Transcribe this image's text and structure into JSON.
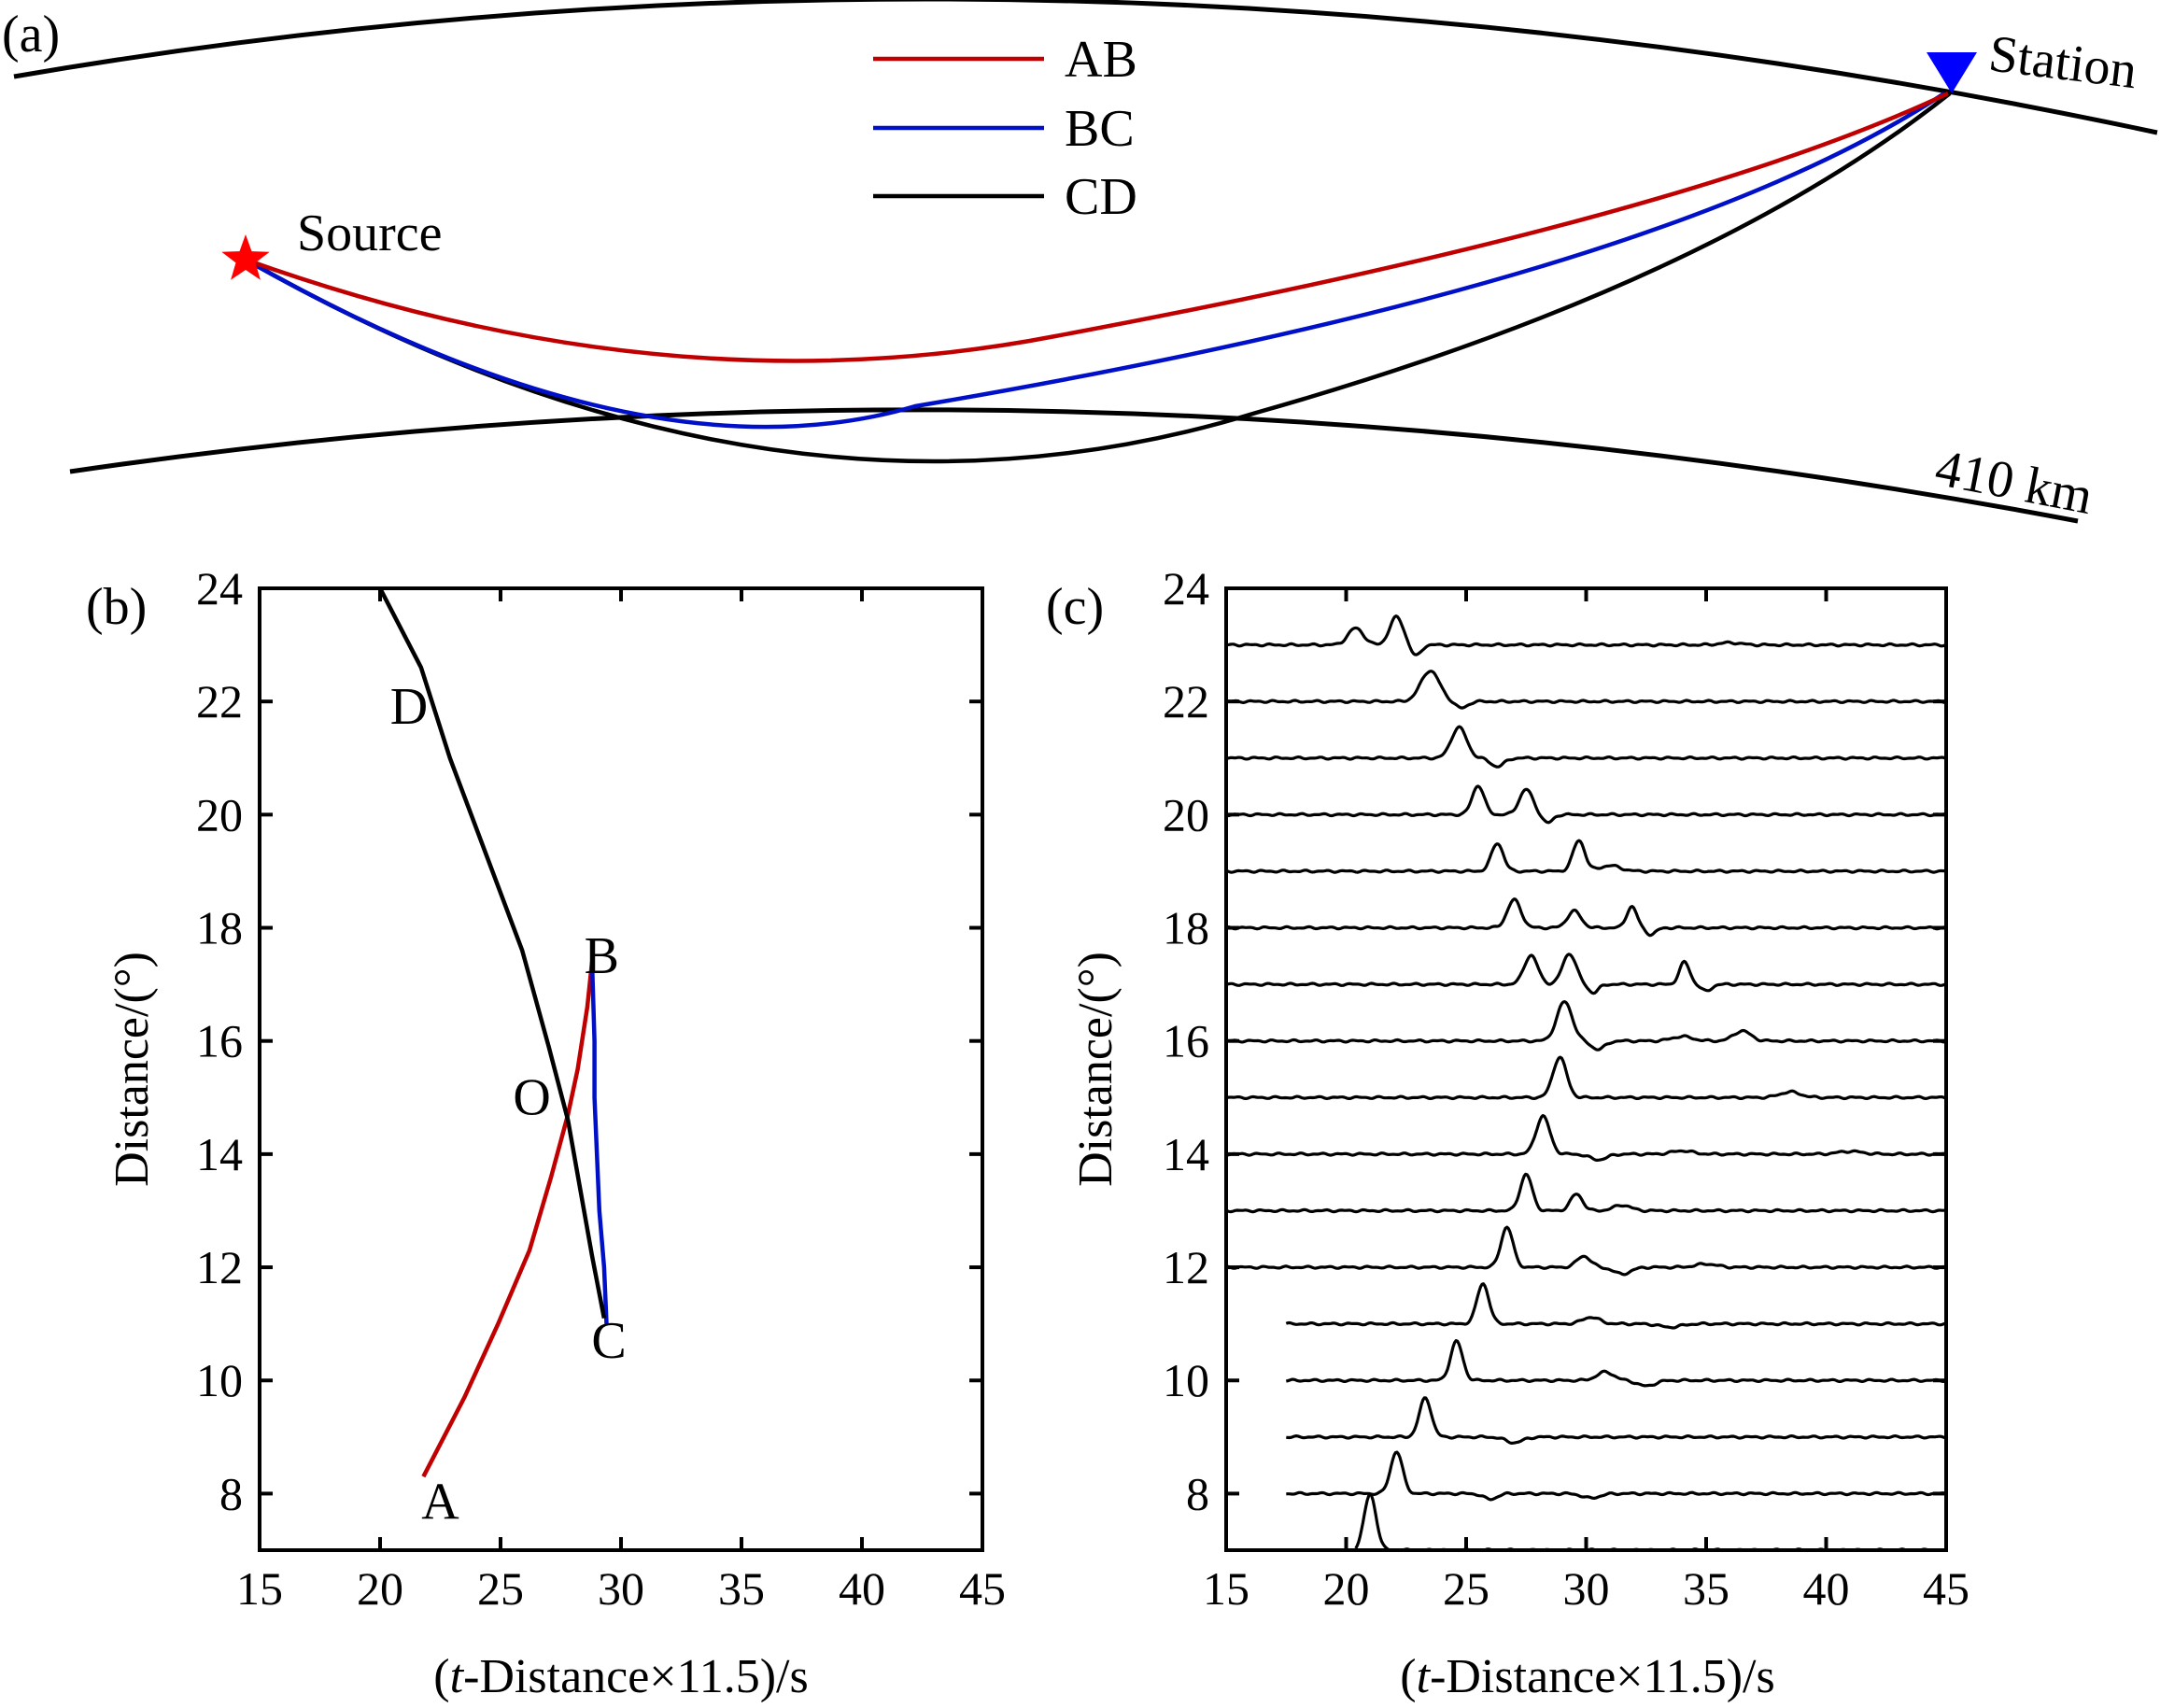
{
  "figure": {
    "panel_a_label": "(a)",
    "panel_b_label": "(b)",
    "panel_c_label": "(c)"
  },
  "colors": {
    "AB": "#c00000",
    "BC": "#0010c8",
    "CD": "#000000",
    "source_star": "#ff0000",
    "station_marker": "#0000ff"
  },
  "chart_data": [
    {
      "type": "schematic",
      "panel": "(a)",
      "title": "",
      "labels": {
        "source": "Source",
        "station": "Station",
        "discontinuity": "410 km"
      },
      "legend": {
        "placement": "top-center",
        "entries": [
          {
            "name": "AB",
            "color": "#c00000"
          },
          {
            "name": "BC",
            "color": "#0010c8"
          },
          {
            "name": "CD",
            "color": "#000000"
          }
        ]
      }
    },
    {
      "type": "line",
      "panel": "(b)",
      "xlabel_pre": "(",
      "xlabel_italic": "t",
      "xlabel_post": "-Distance×11.5)/s",
      "ylabel": "Distance/(°)",
      "xlim": [
        15,
        45
      ],
      "ylim": [
        7,
        24
      ],
      "xticks": [
        15,
        20,
        25,
        30,
        35,
        40,
        45
      ],
      "yticks": [
        8,
        10,
        12,
        14,
        16,
        18,
        20,
        22,
        24
      ],
      "series": [
        {
          "name": "AB",
          "color": "#c00000",
          "points": [
            [
              21.8,
              8.3
            ],
            [
              23.5,
              9.7
            ],
            [
              24.9,
              11.0
            ],
            [
              26.2,
              12.3
            ],
            [
              27.1,
              13.6
            ],
            [
              27.8,
              14.7
            ],
            [
              28.2,
              15.5
            ],
            [
              28.6,
              16.6
            ],
            [
              28.8,
              17.4
            ],
            [
              28.8,
              17.8
            ]
          ]
        },
        {
          "name": "BC",
          "color": "#0010c8",
          "points": [
            [
              28.8,
              17.4
            ],
            [
              28.9,
              16.0
            ],
            [
              28.9,
              15.0
            ],
            [
              29.0,
              14.0
            ],
            [
              29.1,
              13.0
            ],
            [
              29.3,
              12.0
            ],
            [
              29.4,
              11.0
            ]
          ]
        },
        {
          "name": "CD",
          "color": "#000000",
          "points": [
            [
              20.0,
              24.0
            ],
            [
              21.7,
              22.6
            ],
            [
              22.9,
              21.0
            ],
            [
              24.4,
              19.3
            ],
            [
              25.9,
              17.6
            ],
            [
              27.0,
              15.9
            ],
            [
              27.8,
              14.6
            ],
            [
              28.3,
              13.4
            ],
            [
              28.8,
              12.2
            ],
            [
              29.3,
              11.1
            ]
          ]
        }
      ],
      "point_labels": [
        {
          "text": "A",
          "x": 22.5,
          "y": 7.85
        },
        {
          "text": "B",
          "x": 29.2,
          "y": 17.5
        },
        {
          "text": "C",
          "x": 29.5,
          "y": 10.7
        },
        {
          "text": "D",
          "x": 21.2,
          "y": 21.9
        },
        {
          "text": "O",
          "x": 26.3,
          "y": 15.0
        }
      ]
    },
    {
      "type": "line",
      "panel": "(c)",
      "subtype": "waveform-record-section",
      "xlabel_pre": "(",
      "xlabel_italic": "t",
      "xlabel_post": "-Distance×11.5)/s",
      "ylabel": "Distance/(°)",
      "xlim": [
        15,
        45
      ],
      "ylim": [
        7,
        24
      ],
      "xticks": [
        15,
        20,
        25,
        30,
        35,
        40,
        45
      ],
      "yticks": [
        8,
        10,
        12,
        14,
        16,
        18,
        20,
        22,
        24
      ],
      "traces": [
        {
          "distance": 7,
          "start": 20.4,
          "peaks": [
            [
              21.0,
              1.0,
              0.35
            ]
          ]
        },
        {
          "distance": 8,
          "start": 17.5,
          "peaks": [
            [
              22.1,
              0.75,
              0.35
            ],
            [
              26.0,
              -0.1,
              0.4
            ],
            [
              30.2,
              -0.08,
              0.5
            ]
          ]
        },
        {
          "distance": 9,
          "start": 17.5,
          "peaks": [
            [
              23.3,
              0.7,
              0.35
            ],
            [
              27.0,
              -0.1,
              0.5
            ]
          ]
        },
        {
          "distance": 10,
          "start": 17.5,
          "peaks": [
            [
              24.6,
              0.7,
              0.35
            ],
            [
              30.8,
              0.15,
              0.5
            ],
            [
              32.5,
              -0.1,
              0.5
            ]
          ]
        },
        {
          "distance": 11,
          "start": 17.5,
          "peaks": [
            [
              25.7,
              0.72,
              0.35
            ],
            [
              30.2,
              0.12,
              0.5
            ],
            [
              33.5,
              -0.06,
              0.6
            ]
          ]
        },
        {
          "distance": 12,
          "start": 15.0,
          "peaks": [
            [
              26.7,
              0.72,
              0.35
            ],
            [
              29.9,
              0.2,
              0.4
            ],
            [
              31.5,
              -0.12,
              0.5
            ],
            [
              35.0,
              0.06,
              0.6
            ]
          ]
        },
        {
          "distance": 13,
          "start": 15.0,
          "peaks": [
            [
              27.5,
              0.65,
              0.35
            ],
            [
              29.6,
              0.3,
              0.35
            ],
            [
              31.5,
              0.1,
              0.5
            ]
          ]
        },
        {
          "distance": 14,
          "start": 15.0,
          "peaks": [
            [
              28.2,
              0.68,
              0.4
            ],
            [
              30.5,
              -0.1,
              0.5
            ],
            [
              34.0,
              0.06,
              0.6
            ],
            [
              41.0,
              0.05,
              0.7
            ]
          ]
        },
        {
          "distance": 15,
          "start": 15.0,
          "peaks": [
            [
              28.9,
              0.72,
              0.4
            ],
            [
              38.5,
              0.1,
              0.6
            ]
          ]
        },
        {
          "distance": 16,
          "start": 15.0,
          "peaks": [
            [
              29.1,
              0.7,
              0.45
            ],
            [
              30.5,
              -0.15,
              0.4
            ],
            [
              34.0,
              0.08,
              0.6
            ],
            [
              36.5,
              0.18,
              0.5
            ]
          ]
        },
        {
          "distance": 17,
          "start": 15.0,
          "peaks": [
            [
              27.7,
              0.52,
              0.4
            ],
            [
              29.3,
              0.55,
              0.4
            ],
            [
              30.3,
              -0.15,
              0.3
            ],
            [
              34.1,
              0.4,
              0.3
            ],
            [
              35.0,
              -0.12,
              0.3
            ]
          ]
        },
        {
          "distance": 18,
          "start": 15.0,
          "peaks": [
            [
              27.0,
              0.5,
              0.4
            ],
            [
              29.5,
              0.3,
              0.4
            ],
            [
              31.9,
              0.38,
              0.3
            ],
            [
              32.7,
              -0.12,
              0.3
            ]
          ]
        },
        {
          "distance": 19,
          "start": 15.0,
          "peaks": [
            [
              26.3,
              0.5,
              0.35
            ],
            [
              29.7,
              0.55,
              0.35
            ],
            [
              31.0,
              0.1,
              0.6
            ]
          ]
        },
        {
          "distance": 20,
          "start": 15.0,
          "peaks": [
            [
              25.5,
              0.52,
              0.35
            ],
            [
              27.5,
              0.45,
              0.4
            ],
            [
              28.4,
              -0.15,
              0.3
            ]
          ]
        },
        {
          "distance": 21,
          "start": 15.0,
          "peaks": [
            [
              24.7,
              0.55,
              0.45
            ],
            [
              26.3,
              -0.15,
              0.4
            ]
          ]
        },
        {
          "distance": 22,
          "start": 15.0,
          "peaks": [
            [
              23.5,
              0.55,
              0.55
            ],
            [
              24.8,
              -0.12,
              0.35
            ]
          ]
        },
        {
          "distance": 23,
          "start": 15.0,
          "peaks": [
            [
              20.4,
              0.3,
              0.45
            ],
            [
              22.1,
              0.5,
              0.4
            ],
            [
              22.9,
              -0.2,
              0.3
            ],
            [
              36.0,
              0.04,
              0.6
            ]
          ]
        }
      ]
    }
  ]
}
